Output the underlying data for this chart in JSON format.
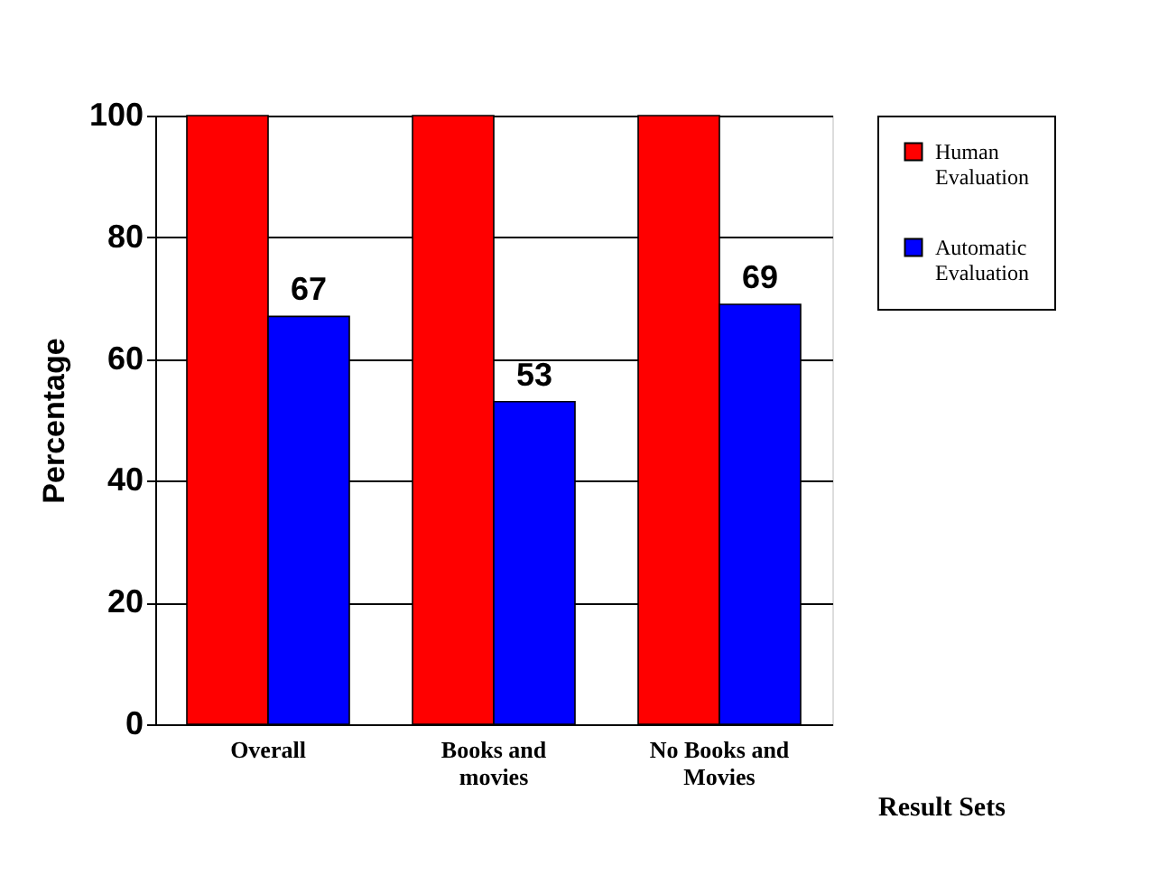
{
  "chart_data": {
    "type": "bar",
    "xlabel": "Result Sets",
    "ylabel": "Percentage",
    "categories": [
      "Overall",
      "Books and movies",
      "No Books and Movies"
    ],
    "series": [
      {
        "name": "Human Evaluation",
        "color": "#ff0000",
        "values": [
          100,
          100,
          100
        ]
      },
      {
        "name": "Automatic Evaluation",
        "color": "#0000ff",
        "values": [
          67,
          53,
          69
        ],
        "value_labels": [
          "67",
          "53",
          "69"
        ]
      }
    ],
    "ylim": [
      0,
      100
    ],
    "yticks": [
      0,
      20,
      40,
      60,
      80,
      100
    ],
    "grid": "y",
    "legend": "right"
  }
}
